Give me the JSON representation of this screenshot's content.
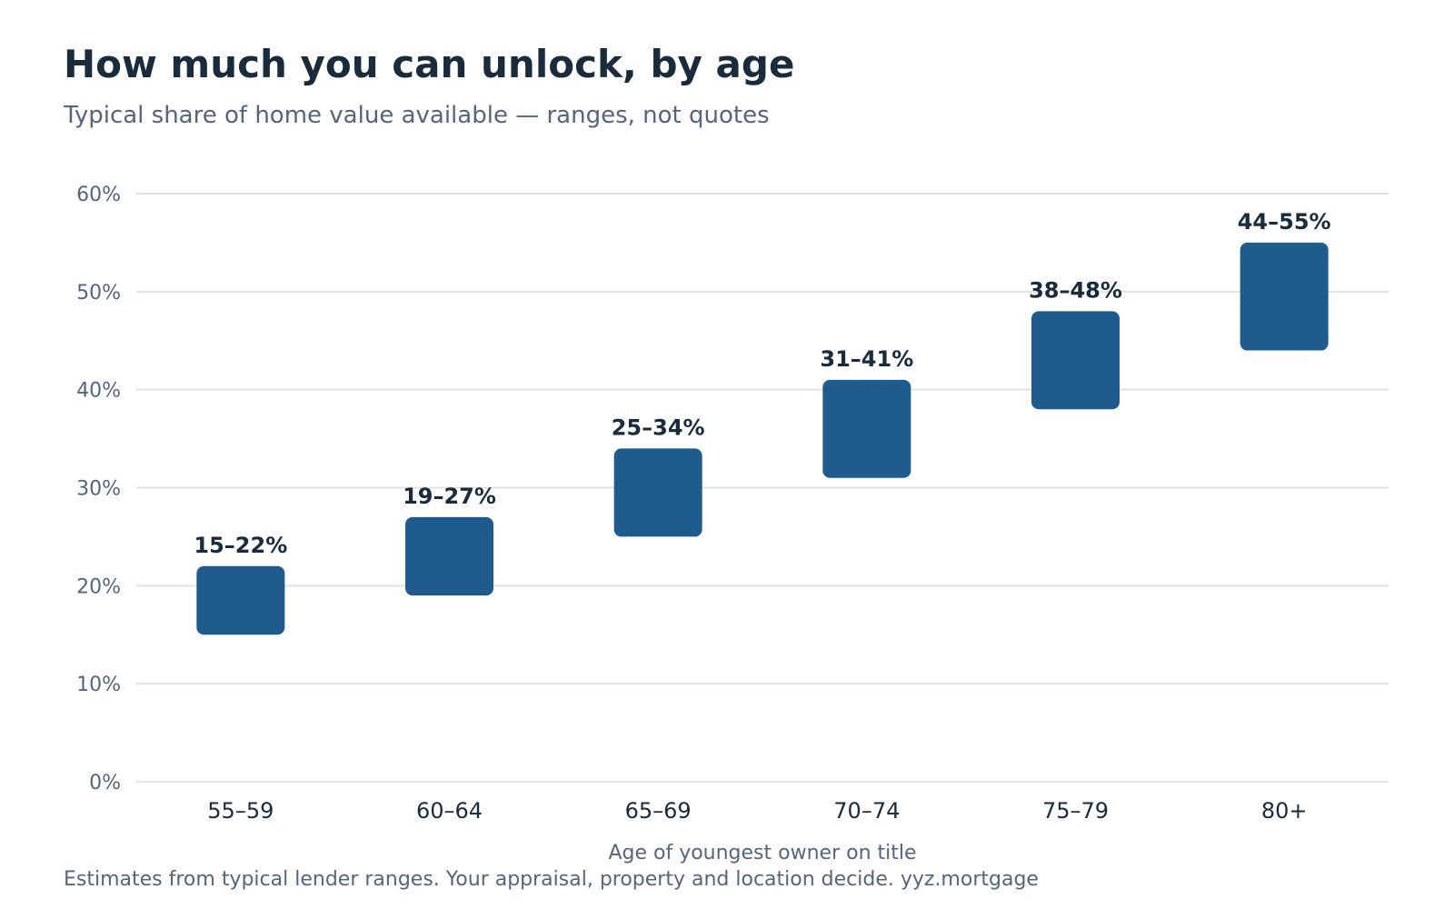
{
  "title": "How much you can unlock, by age",
  "subtitle": "Typical share of home value available — ranges, not quotes",
  "footnote": "Estimates from typical lender ranges. Your appraisal, property and location decide. yyz.mortgage",
  "colors": {
    "bar": "#1f5b8c",
    "grid": "#e2e3dc",
    "title": "#1a2b3c",
    "muted": "#55657a"
  },
  "chart_data": {
    "type": "bar",
    "categories": [
      "55–59",
      "60–64",
      "65–69",
      "70–74",
      "75–79",
      "80+"
    ],
    "ranges": [
      [
        15,
        22
      ],
      [
        19,
        27
      ],
      [
        25,
        34
      ],
      [
        31,
        41
      ],
      [
        38,
        48
      ],
      [
        44,
        55
      ]
    ],
    "data_labels": [
      "15–22%",
      "19–27%",
      "25–34%",
      "31–41%",
      "38–48%",
      "44–55%"
    ],
    "title": "How much you can unlock, by age",
    "subtitle": "Typical share of home value available — ranges, not quotes",
    "xlabel": "Age of youngest owner on title",
    "ylabel": "",
    "ylim": [
      0,
      60
    ],
    "yticks": [
      0,
      10,
      20,
      30,
      40,
      50,
      60
    ],
    "ytick_labels": [
      "0%",
      "10%",
      "20%",
      "30%",
      "40%",
      "50%",
      "60%"
    ],
    "grid": true,
    "legend": "none"
  }
}
